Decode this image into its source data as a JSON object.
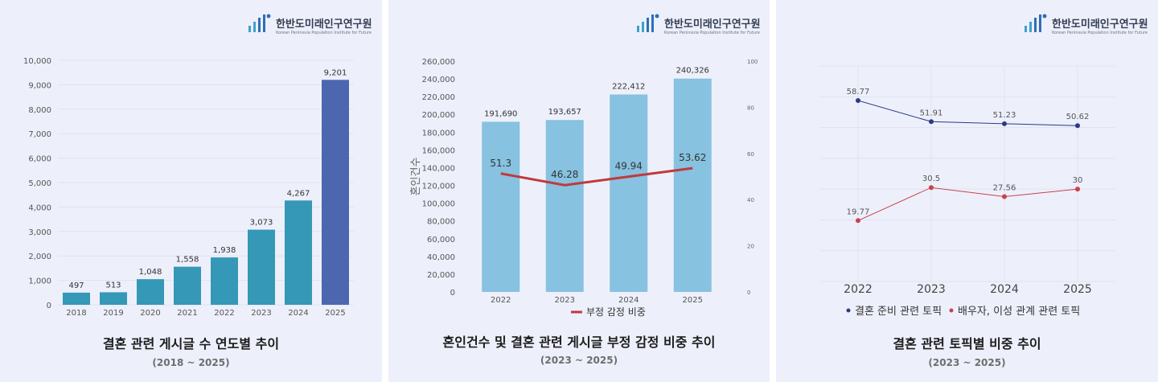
{
  "brand": {
    "name": "한반도미래인구연구원",
    "subtitle": "Korean Peninsula Population Institute for Future"
  },
  "panels": [
    {
      "title": "결혼 관련 게시글 수 연도별 추이",
      "subtitle": "(2018 ~ 2025)"
    },
    {
      "title": "혼인건수 및 결혼 관련 게시글 부정 감정 비중 추이",
      "subtitle": "(2023 ~ 2025)"
    },
    {
      "title": "결혼 관련 토픽별 비중 추이",
      "subtitle": "(2023 ~ 2025)"
    }
  ],
  "chart_data": [
    {
      "type": "bar",
      "categories": [
        "2018",
        "2019",
        "2020",
        "2021",
        "2022",
        "2023",
        "2024",
        "2025"
      ],
      "values": [
        497,
        513,
        1048,
        1558,
        1938,
        3073,
        4267,
        9201
      ],
      "value_labels": [
        "497",
        "513",
        "1,048",
        "1,558",
        "1,938",
        "3,073",
        "4,267",
        "9,201"
      ],
      "y_ticks": [
        "0",
        "1,000",
        "2,000",
        "3,000",
        "4,000",
        "5,000",
        "6,000",
        "7,000",
        "8,000",
        "9,000",
        "10,000"
      ],
      "ylim": [
        0,
        10000
      ],
      "grid": true,
      "colors": {
        "bar": "#3598b6",
        "highlight": "#4c67b0"
      }
    },
    {
      "type": "bar",
      "categories": [
        "2022",
        "2023",
        "2024",
        "2025"
      ],
      "series": [
        {
          "values": [
            191690,
            193657,
            222412,
            240326
          ],
          "value_labels": [
            "191,690",
            "193,657",
            "222,412",
            "240,326"
          ],
          "axis": "left",
          "color": "#87c2e0"
        },
        {
          "name": "부정 감정 비중",
          "values": [
            51.3,
            46.28,
            49.94,
            53.62
          ],
          "value_labels": [
            "51.3",
            "46.28",
            "49.94",
            "53.62"
          ],
          "axis": "right",
          "line": true,
          "color": "#c03a3a"
        }
      ],
      "ylabel": "혼인건수",
      "y_ticks": [
        "0",
        "20,000",
        "40,000",
        "60,000",
        "80,000",
        "100,000",
        "120,000",
        "140,000",
        "160,000",
        "180,000",
        "200,000",
        "220,000",
        "240,000",
        "260,000"
      ],
      "ylim": [
        0,
        260000
      ],
      "y2_ticks": [
        "0",
        "20",
        "40",
        "60",
        "80",
        "100"
      ],
      "y2lim": [
        0,
        100
      ],
      "legend": "bottom"
    },
    {
      "type": "line",
      "x": [
        "2022",
        "2023",
        "2024",
        "2025"
      ],
      "series": [
        {
          "name": "결혼 준비 관련 토픽",
          "values": [
            58.77,
            51.91,
            51.23,
            50.62
          ],
          "value_labels": [
            "58.77",
            "51.91",
            "51.23",
            "50.62"
          ],
          "color": "#2c3a86"
        },
        {
          "name": "배우자, 이성 관계 관련 토픽",
          "values": [
            19.77,
            30.5,
            27.56,
            30
          ],
          "value_labels": [
            "19.77",
            "30.5",
            "27.56",
            "30"
          ],
          "color": "#c9414b"
        }
      ],
      "ylim": [
        0,
        70
      ],
      "grid": true,
      "legend": "bottom"
    }
  ]
}
